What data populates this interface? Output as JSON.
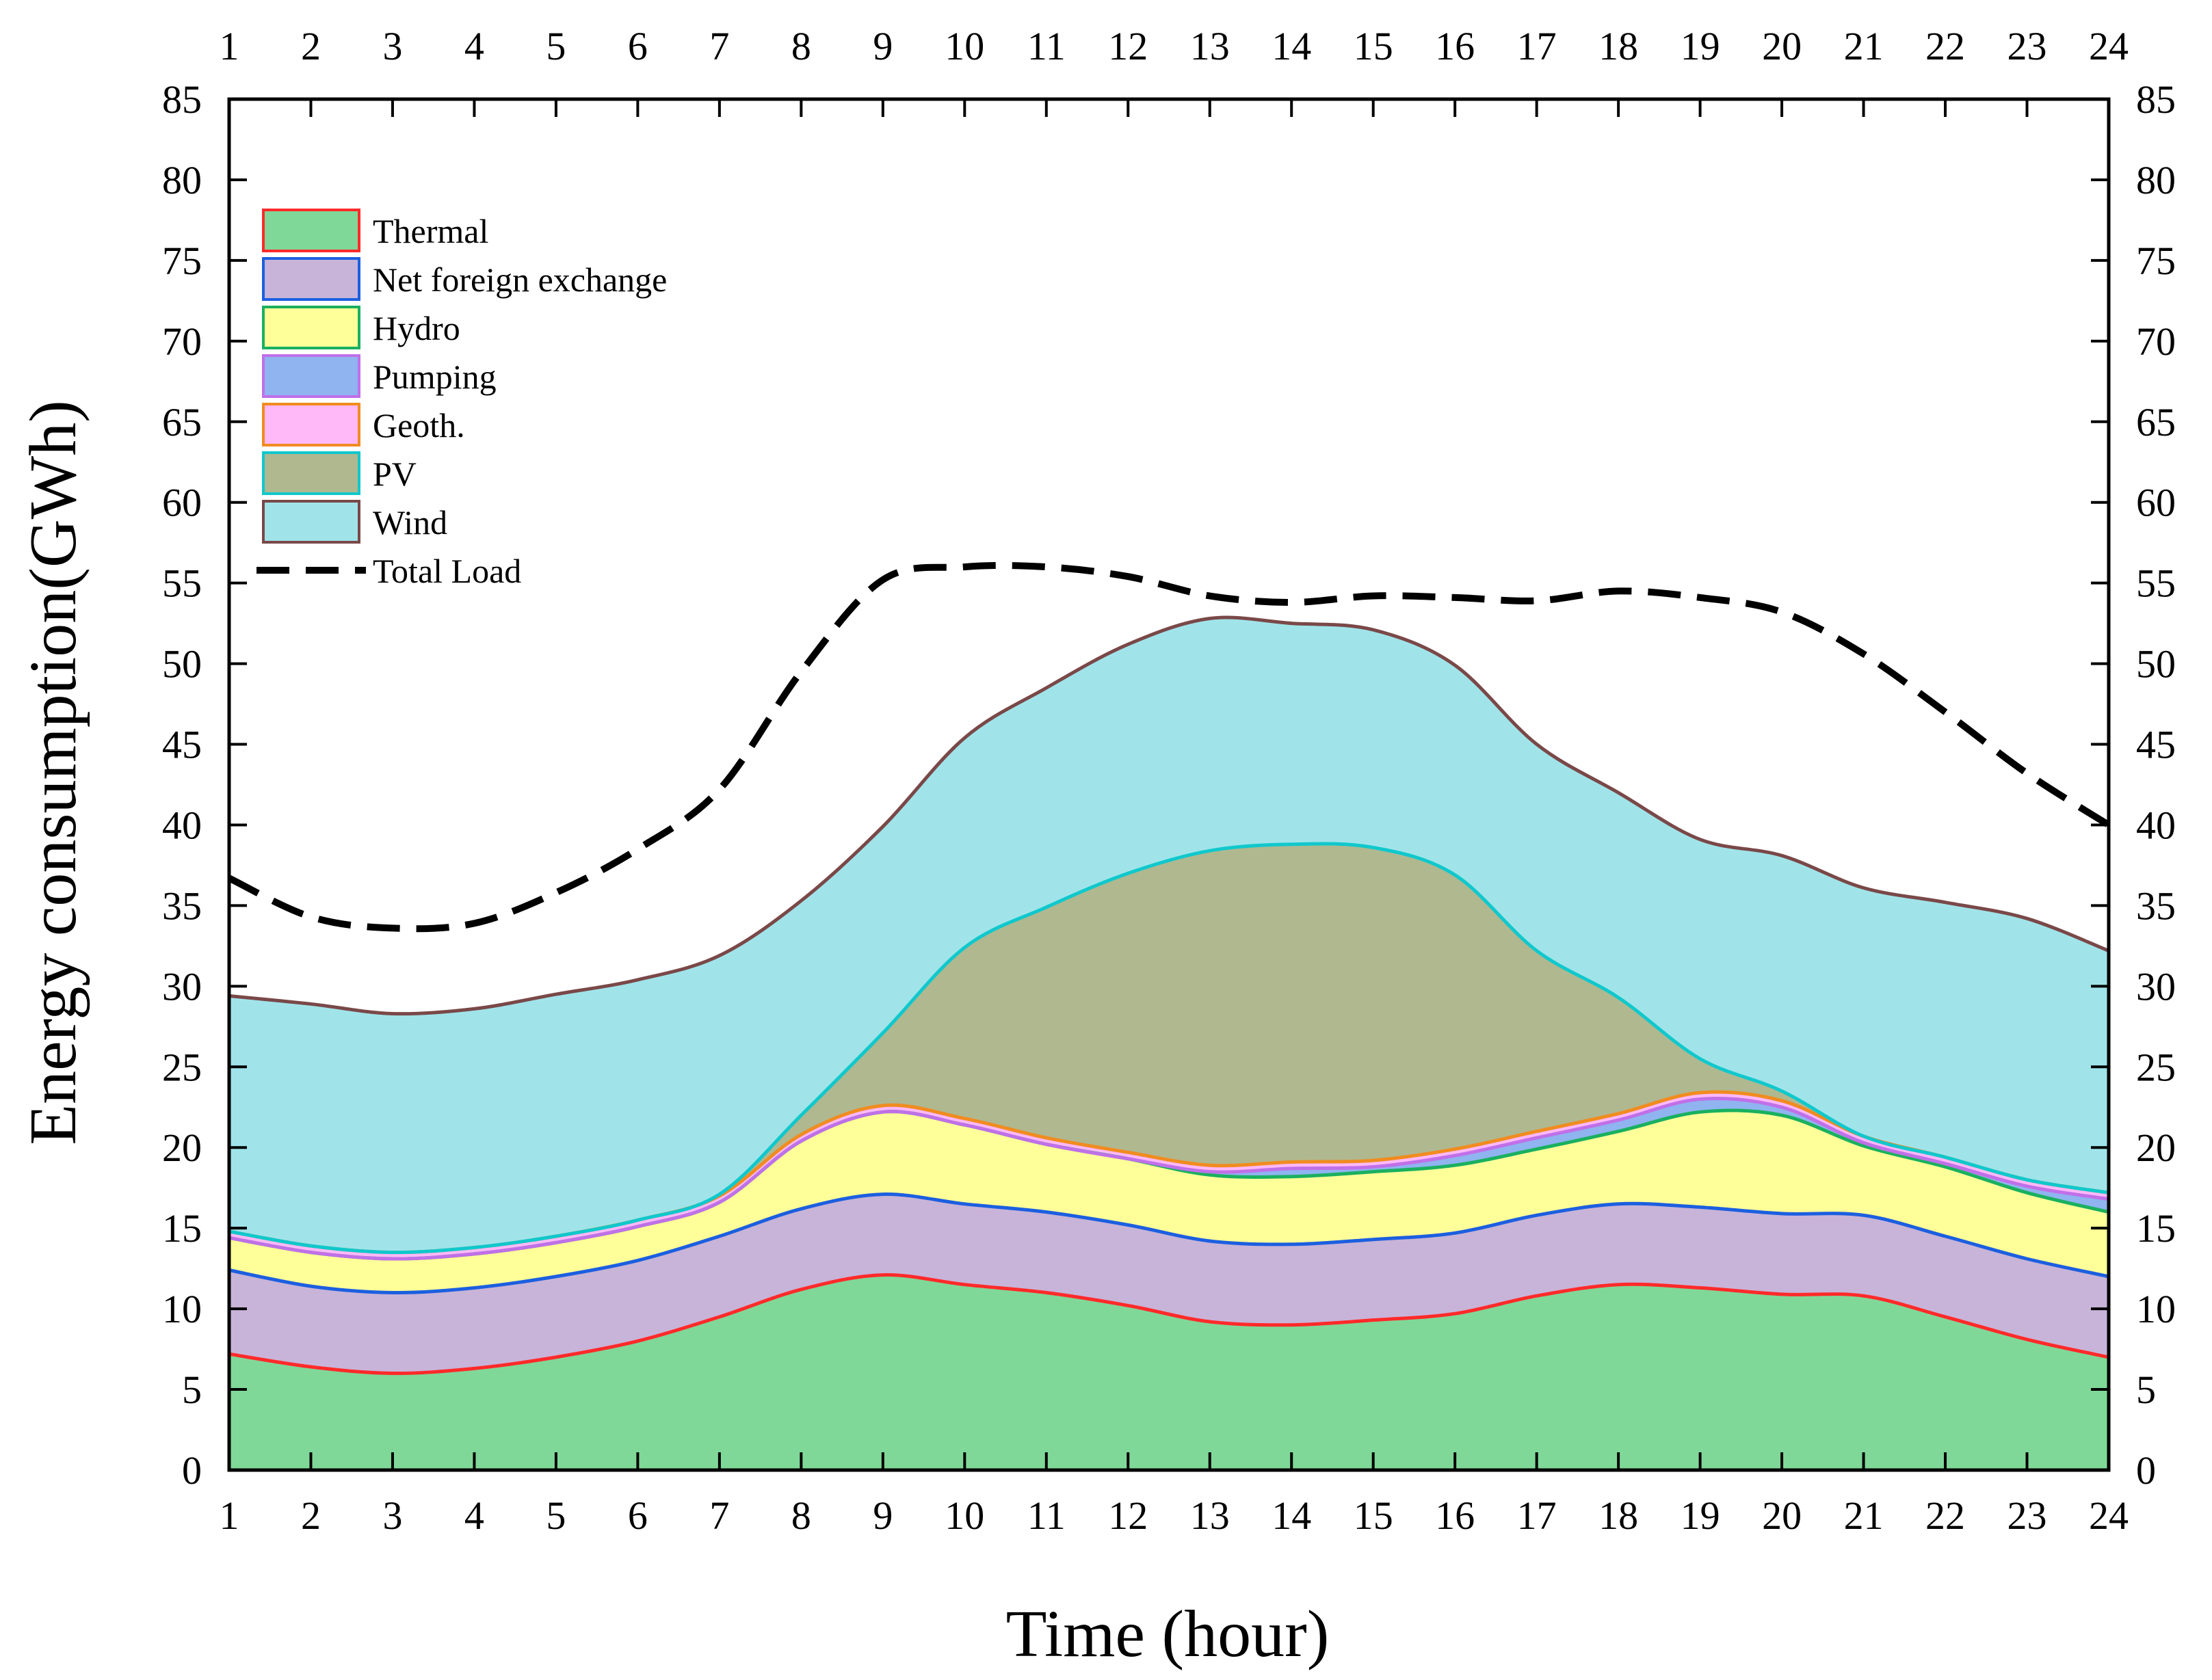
{
  "chart_data": {
    "type": "area",
    "stacked": true,
    "xlabel": "Time (hour)",
    "ylabel": "Energy consumption(GWh)",
    "x": [
      1,
      2,
      3,
      4,
      5,
      6,
      7,
      8,
      9,
      10,
      11,
      12,
      13,
      14,
      15,
      16,
      17,
      18,
      19,
      20,
      21,
      22,
      23,
      24
    ],
    "xlim": [
      1,
      24
    ],
    "ylim": [
      0,
      85
    ],
    "yticks": [
      0,
      5,
      10,
      15,
      20,
      25,
      30,
      35,
      40,
      45,
      50,
      55,
      60,
      65,
      70,
      75,
      80,
      85
    ],
    "x_top_axis_mirrored": true,
    "y_right_axis_mirrored": true,
    "legend_position": "top-left",
    "series": [
      {
        "name": "Thermal",
        "fill": "#80d898",
        "stroke": "#ff2a2a",
        "values": [
          7.2,
          6.4,
          6.0,
          6.3,
          7.0,
          8.0,
          9.5,
          11.2,
          12.1,
          11.5,
          11.0,
          10.2,
          9.2,
          9.0,
          9.3,
          9.7,
          10.8,
          11.5,
          11.3,
          10.9,
          10.8,
          9.5,
          8.1,
          7.0
        ]
      },
      {
        "name": "Net foreign exchange",
        "fill": "#c8b4d8",
        "stroke": "#1c5fe0",
        "values": [
          5.2,
          5.0,
          5.0,
          5.0,
          5.0,
          5.0,
          5.0,
          5.0,
          5.0,
          5.0,
          5.0,
          5.0,
          5.0,
          5.0,
          5.0,
          5.0,
          5.0,
          5.0,
          5.0,
          5.0,
          5.0,
          5.0,
          5.0,
          5.0
        ]
      },
      {
        "name": "Hydro",
        "fill": "#ffff99",
        "stroke": "#1ab060",
        "values": [
          2.0,
          2.1,
          2.1,
          2.1,
          2.1,
          2.1,
          2.1,
          4.2,
          5.1,
          4.9,
          4.2,
          4.1,
          4.1,
          4.2,
          4.2,
          4.2,
          4.1,
          4.5,
          5.9,
          6.1,
          4.3,
          4.3,
          4.1,
          4.0
        ]
      },
      {
        "name": "Pumping",
        "fill": "#8fb4f0",
        "stroke": "#c070e8",
        "values": [
          0.0,
          0.0,
          0.0,
          0.0,
          0.0,
          0.0,
          0.0,
          0.0,
          0.0,
          0.0,
          0.0,
          0.0,
          0.2,
          0.5,
          0.3,
          0.6,
          0.7,
          0.7,
          0.8,
          0.5,
          0.2,
          0.2,
          0.4,
          0.8
        ]
      },
      {
        "name": "Geoth.",
        "fill": "#ffb8f8",
        "stroke": "#f08c20",
        "values": [
          0.4,
          0.4,
          0.4,
          0.4,
          0.4,
          0.4,
          0.4,
          0.4,
          0.4,
          0.4,
          0.4,
          0.4,
          0.4,
          0.4,
          0.4,
          0.4,
          0.4,
          0.4,
          0.4,
          0.4,
          0.4,
          0.4,
          0.4,
          0.4
        ]
      },
      {
        "name": "PV",
        "fill": "#b0b890",
        "stroke": "#10c8cc",
        "values": [
          0.0,
          0.0,
          0.0,
          0.0,
          0.0,
          0.0,
          0.1,
          1.2,
          4.5,
          10.6,
          14.3,
          17.3,
          19.5,
          19.7,
          19.4,
          17.0,
          11.2,
          7.2,
          2.1,
          0.6,
          0.0,
          0.0,
          0.0,
          0.0
        ]
      },
      {
        "name": "Wind",
        "fill": "#a0e4ea",
        "stroke": "#7a4848",
        "values": [
          14.6,
          15.0,
          14.8,
          14.8,
          15.0,
          14.9,
          14.8,
          13.3,
          12.8,
          13.0,
          13.6,
          14.2,
          14.4,
          13.7,
          13.5,
          13.0,
          12.8,
          12.7,
          13.6,
          14.6,
          15.4,
          15.8,
          16.2,
          15.0
        ]
      }
    ],
    "total_load": {
      "name": "Total Load",
      "values": [
        36.7,
        34.3,
        33.6,
        33.9,
        35.8,
        38.5,
        42.2,
        49.5,
        55.2,
        56.0,
        56.0,
        55.4,
        54.2,
        53.8,
        54.2,
        54.1,
        53.9,
        54.5,
        54.1,
        53.2,
        50.6,
        47.0,
        43.2,
        40.0
      ]
    }
  }
}
